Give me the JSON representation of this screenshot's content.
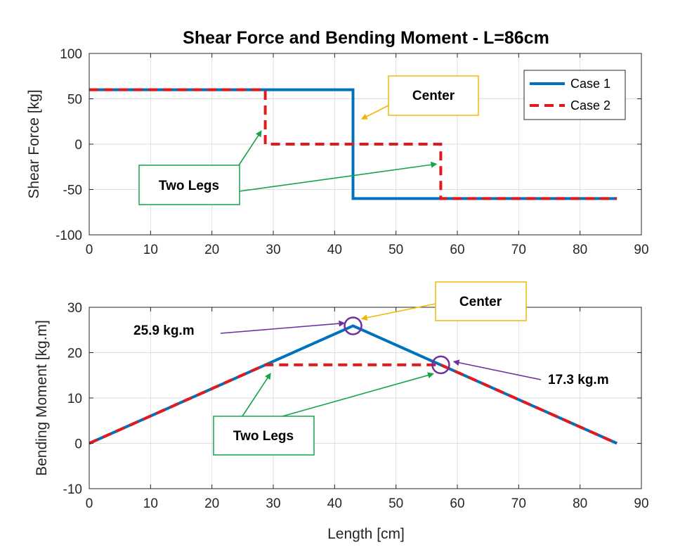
{
  "colors": {
    "case1": "#0072BD",
    "case2": "#E31A1C",
    "center_box": "#F2B705",
    "legs_box": "#16A34A",
    "value_arrow": "#7030A0"
  },
  "chart_data": [
    {
      "type": "line",
      "title": "Shear Force and Bending Moment - L=86cm",
      "xlabel": "",
      "ylabel": "Shear Force [kg]",
      "xlim": [
        0,
        90
      ],
      "ylim": [
        -100,
        100
      ],
      "xticks": [
        "0",
        "10",
        "20",
        "30",
        "40",
        "50",
        "60",
        "70",
        "80",
        "90"
      ],
      "yticks": [
        "100",
        "50",
        "0",
        "-50",
        "-100"
      ],
      "grid": true,
      "legend_position": "top-right",
      "series": [
        {
          "name": "Case 1",
          "style": "solid",
          "x": [
            0,
            43,
            43,
            86
          ],
          "y": [
            60,
            60,
            -60,
            -60
          ]
        },
        {
          "name": "Case 2",
          "style": "dashed",
          "x": [
            0,
            28.7,
            28.7,
            57.3,
            57.3,
            86
          ],
          "y": [
            60,
            60,
            0,
            0,
            -60,
            -60
          ]
        }
      ],
      "annotations": [
        {
          "text": "Center",
          "targets": [
            [
              44.5,
              28
            ]
          ]
        },
        {
          "text": "Two Legs",
          "targets": [
            [
              28,
              14
            ],
            [
              56.5,
              -22
            ]
          ]
        }
      ]
    },
    {
      "type": "line",
      "title": "",
      "xlabel": "Length [cm]",
      "ylabel": "Bending Moment [kg.m]",
      "xlim": [
        0,
        90
      ],
      "ylim": [
        -10,
        30
      ],
      "xticks": [
        "0",
        "10",
        "20",
        "30",
        "40",
        "50",
        "60",
        "70",
        "80",
        "90"
      ],
      "yticks": [
        "30",
        "20",
        "10",
        "0",
        "-10"
      ],
      "grid": true,
      "series": [
        {
          "name": "Case 1",
          "style": "solid",
          "x": [
            0,
            43,
            86
          ],
          "y": [
            0,
            25.9,
            0
          ]
        },
        {
          "name": "Case 2",
          "style": "dashed",
          "x": [
            0,
            28.7,
            57.3,
            86
          ],
          "y": [
            0,
            17.3,
            17.3,
            0
          ]
        }
      ],
      "markers": [
        {
          "x": 43,
          "y": 25.9
        },
        {
          "x": 57.3,
          "y": 17.3
        }
      ],
      "annotations": [
        {
          "text": "Center",
          "targets": [
            [
              44.5,
              27.5
            ]
          ]
        },
        {
          "text": "Two Legs",
          "targets": [
            [
              29.5,
              15.3
            ],
            [
              56,
              15.3
            ]
          ]
        },
        {
          "text": "25.9 kg.m",
          "targets": [
            [
              41.5,
              26.5
            ]
          ]
        },
        {
          "text": "17.3 kg.m",
          "targets": [
            [
              59.5,
              18
            ]
          ]
        }
      ]
    }
  ]
}
